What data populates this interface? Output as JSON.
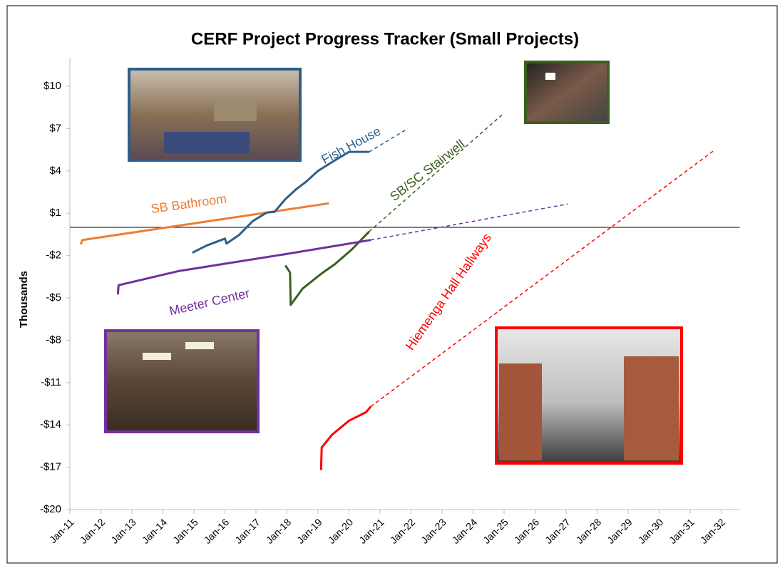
{
  "chart_data": {
    "type": "line",
    "title": "CERF Project Progress Tracker (Small Projects)",
    "y_label": "Thousands",
    "xlim": [
      2011,
      2032.6
    ],
    "xticks": [
      {
        "value": 2011,
        "label": "Jan-11"
      },
      {
        "value": 2012,
        "label": "Jan-12"
      },
      {
        "value": 2013,
        "label": "Jan-13"
      },
      {
        "value": 2014,
        "label": "Jan-14"
      },
      {
        "value": 2015,
        "label": "Jan-15"
      },
      {
        "value": 2016,
        "label": "Jan-16"
      },
      {
        "value": 2017,
        "label": "Jan-17"
      },
      {
        "value": 2018,
        "label": "Jan-18"
      },
      {
        "value": 2019,
        "label": "Jan-19"
      },
      {
        "value": 2020,
        "label": "Jan-20"
      },
      {
        "value": 2021,
        "label": "Jan-21"
      },
      {
        "value": 2022,
        "label": "Jan-22"
      },
      {
        "value": 2023,
        "label": "Jan-23"
      },
      {
        "value": 2024,
        "label": "Jan-24"
      },
      {
        "value": 2025,
        "label": "Jan-25"
      },
      {
        "value": 2026,
        "label": "Jan-26"
      },
      {
        "value": 2027,
        "label": "Jan-27"
      },
      {
        "value": 2028,
        "label": "Jan-28"
      },
      {
        "value": 2029,
        "label": "Jan-29"
      },
      {
        "value": 2030,
        "label": "Jan-30"
      },
      {
        "value": 2031,
        "label": "Jan-31"
      },
      {
        "value": 2032,
        "label": "Jan-32"
      }
    ],
    "ylim": [
      -20,
      12
    ],
    "yticks": [
      {
        "value": 10,
        "label": "$10"
      },
      {
        "value": 7,
        "label": "$7"
      },
      {
        "value": 4,
        "label": "$4"
      },
      {
        "value": 1,
        "label": "$1"
      },
      {
        "value": -2,
        "label": "-$2"
      },
      {
        "value": -5,
        "label": "-$5"
      },
      {
        "value": -8,
        "label": "-$8"
      },
      {
        "value": -11,
        "label": "-$11"
      },
      {
        "value": -14,
        "label": "-$14"
      },
      {
        "value": -17,
        "label": "-$17"
      },
      {
        "value": -20,
        "label": "-$20"
      }
    ],
    "series": [
      {
        "name": "SB Bathroom",
        "color": "#ed7d31",
        "x": [
          2011.35,
          2011.4,
          2019.35
        ],
        "values": [
          -1.2,
          -0.9,
          1.7
        ]
      },
      {
        "name": "Fish House",
        "color": "#2e5f8a",
        "x": [
          2014.95,
          2015.4,
          2016.0,
          2016.05,
          2016.45,
          2016.9,
          2017.35,
          2017.6,
          2017.95,
          2018.3,
          2018.6,
          2019.0,
          2019.55,
          2020.0,
          2020.65
        ],
        "values": [
          -1.8,
          -1.3,
          -0.8,
          -1.15,
          -0.55,
          0.45,
          1.05,
          1.1,
          2.0,
          2.7,
          3.2,
          4.0,
          4.75,
          5.35,
          5.35
        ],
        "projection": {
          "x": [
            2020.65,
            2021.9
          ],
          "values": [
            5.35,
            7.0
          ]
        }
      },
      {
        "name": "SB/SC Stairwell",
        "color": "#3a5f1f",
        "x": [
          2017.95,
          2018.1,
          2018.12,
          2018.5,
          2019.1,
          2019.55,
          2020.1,
          2020.65
        ],
        "values": [
          -2.7,
          -3.2,
          -5.5,
          -4.35,
          -3.3,
          -2.6,
          -1.55,
          -0.3
        ],
        "projection": {
          "x": [
            2020.65,
            2025.0
          ],
          "values": [
            -0.3,
            8.1
          ]
        }
      },
      {
        "name": "Meeter Center",
        "color": "#7030a0",
        "x": [
          2012.55,
          2012.57,
          2014.5,
          2017.95,
          2020.7
        ],
        "values": [
          -4.75,
          -4.1,
          -3.1,
          -1.9,
          -0.9
        ],
        "projection": {
          "x": [
            2020.7,
            2027.05
          ],
          "values": [
            -0.9,
            1.65
          ]
        }
      },
      {
        "name": "Hiemenga Hall Hallways",
        "color": "#ff0000",
        "x": [
          2019.1,
          2019.12,
          2019.45,
          2020.0,
          2020.55,
          2020.7
        ],
        "values": [
          -17.2,
          -15.6,
          -14.7,
          -13.7,
          -13.1,
          -12.7
        ],
        "projection": {
          "x": [
            2020.7,
            2031.8
          ],
          "values": [
            -12.7,
            5.5
          ]
        }
      }
    ]
  }
}
